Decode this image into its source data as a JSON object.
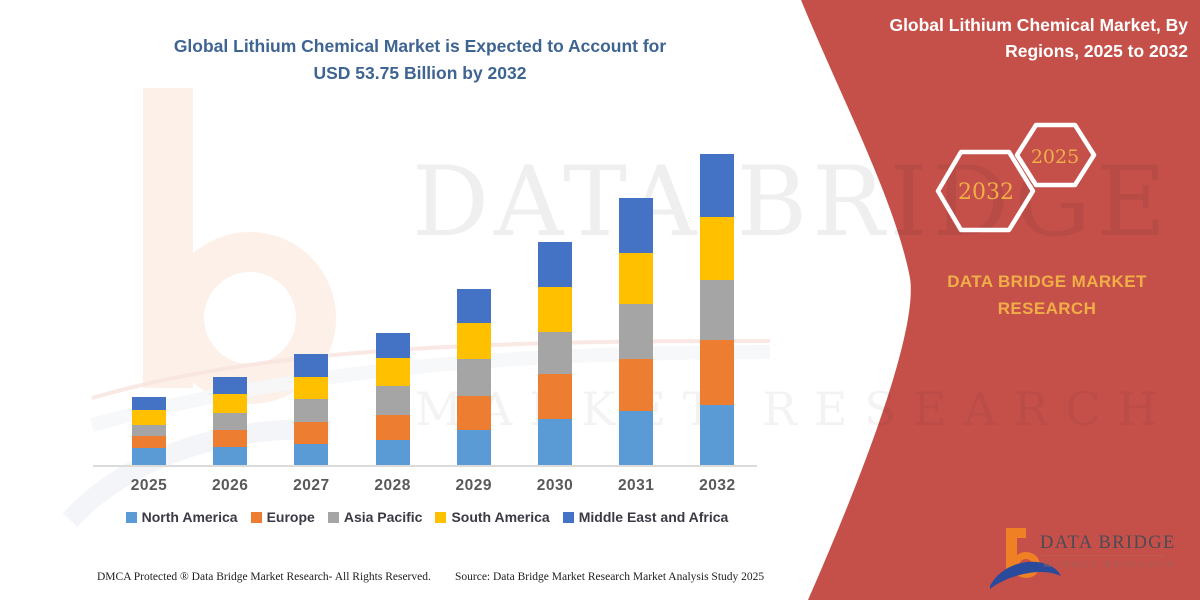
{
  "page": {
    "type": "market-research-infographic"
  },
  "chart": {
    "title": "Global Lithium Chemical Market is Expected to Account for\nUSD 53.75 Billion by 2032",
    "title_color": "#3E6492",
    "footer_left": "DMCA Protected ® Data Bridge Market Research- All Rights Reserved.",
    "footer_source": "Source: Data Bridge Market Research Market Analysis Study 2025"
  },
  "chart_data": {
    "type": "bar",
    "stacked": true,
    "title": "Global Lithium Chemical Market is Expected to Account for USD 53.75 Billion by 2032",
    "unit": "USD Billion",
    "categories": [
      "2025",
      "2026",
      "2027",
      "2028",
      "2029",
      "2030",
      "2031",
      "2032"
    ],
    "series": [
      {
        "name": "North America",
        "color": "#5B9BD5",
        "values": [
          3.0,
          3.1,
          3.6,
          4.3,
          6.0,
          7.9,
          9.4,
          10.4
        ]
      },
      {
        "name": "Europe",
        "color": "#ED7D31",
        "values": [
          2.0,
          3.0,
          3.8,
          4.4,
          6.0,
          7.9,
          9.0,
          11.3
        ]
      },
      {
        "name": "Asia Pacific",
        "color": "#A5A5A5",
        "values": [
          1.9,
          2.9,
          4.0,
          4.9,
          6.3,
          7.2,
          9.4,
          10.4
        ]
      },
      {
        "name": "South America",
        "color": "#FFC000",
        "values": [
          2.6,
          3.3,
          3.9,
          4.9,
          6.3,
          7.8,
          8.9,
          10.75
        ]
      },
      {
        "name": "Middle East and Africa",
        "color": "#4472C4",
        "values": [
          2.2,
          2.9,
          3.9,
          4.3,
          5.9,
          7.8,
          9.5,
          10.9
        ]
      }
    ],
    "estimated_totals": [
      11.7,
      15.2,
      19.2,
      22.8,
      30.5,
      38.6,
      46.2,
      53.75
    ],
    "stated_value_2032": 53.75,
    "values_estimated_from_pixels": true,
    "legend_position": "bottom",
    "grid": false,
    "y_axis_visible": false,
    "ylim": [
      0,
      55
    ]
  },
  "panel": {
    "background": "#C5504A",
    "title": "Global Lithium Chemical Market, By\nRegions, 2025 to 2032",
    "hexagon_large_label": "2032",
    "hexagon_small_label": "2025",
    "brand_text": "DATA BRIDGE MARKET\nRESEARCH",
    "accent_gold": "#F0AE47"
  },
  "logo": {
    "wordmark": "DATA BRIDGE",
    "tagline": "MARKET RESEARCH",
    "mark_orange": "#F08024",
    "mark_blue": "#2A4A9B"
  },
  "watermark": {
    "line1": "DATA BRIDGE",
    "line2": "MARKET RESEARCH"
  }
}
